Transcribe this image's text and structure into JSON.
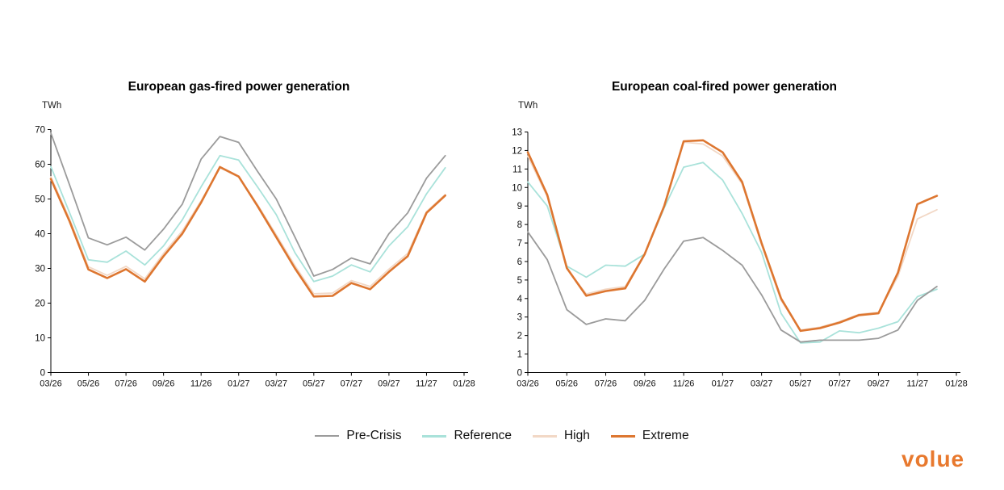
{
  "chart_data": [
    {
      "type": "line",
      "title": "European gas-fired power generation",
      "ylabel": "TWh",
      "x": [
        "03/26",
        "04/26",
        "05/26",
        "06/26",
        "07/26",
        "08/26",
        "09/26",
        "10/26",
        "11/26",
        "12/26",
        "01/27",
        "02/27",
        "03/27",
        "04/27",
        "05/27",
        "06/27",
        "07/27",
        "08/27",
        "09/27",
        "10/27",
        "11/27",
        "12/27"
      ],
      "x_tick_labels": [
        "03/26",
        "05/26",
        "07/26",
        "09/26",
        "11/26",
        "01/27",
        "03/27",
        "05/27",
        "07/27",
        "09/27",
        "11/27",
        "01/28"
      ],
      "ylim": [
        0,
        70
      ],
      "y_ticks": [
        0,
        10,
        20,
        30,
        40,
        50,
        60,
        70
      ],
      "grid": false,
      "legend_position": "bottom-shared",
      "series": [
        {
          "name": "Pre-Crisis",
          "color": "#9B9B9B",
          "values": [
            69,
            54,
            38.8,
            36.8,
            39,
            35.3,
            41.3,
            48.5,
            61.5,
            68,
            66.3,
            58,
            50,
            39,
            27.8,
            29.7,
            33,
            31.3,
            40,
            46,
            56,
            62.5
          ]
        },
        {
          "name": "Reference",
          "color": "#A9E2DA",
          "values": [
            59.3,
            46,
            32.5,
            31.8,
            35,
            31,
            36.5,
            44,
            53.5,
            62.5,
            61.2,
            53.5,
            45.5,
            34.5,
            26.2,
            27.8,
            31,
            29,
            36.5,
            42,
            51.5,
            59
          ]
        },
        {
          "name": "High",
          "color": "#F2D8C6",
          "values": [
            56.4,
            44.2,
            30.5,
            28,
            30.6,
            27,
            34.3,
            40.8,
            49.5,
            59,
            56.3,
            48.4,
            39.7,
            30.8,
            22.7,
            22.9,
            26.5,
            24.8,
            29.8,
            34.3,
            46.4,
            51.3
          ]
        },
        {
          "name": "Extreme",
          "color": "#DD7630",
          "values": [
            55.8,
            43.5,
            29.7,
            27.2,
            29.8,
            26.2,
            33.5,
            40,
            49,
            59.2,
            56.5,
            48,
            39,
            30,
            21.9,
            22.1,
            25.8,
            24,
            29,
            33.5,
            46,
            51
          ]
        }
      ]
    },
    {
      "type": "line",
      "title": "European coal-fired power generation",
      "ylabel": "TWh",
      "x": [
        "03/26",
        "04/26",
        "05/26",
        "06/26",
        "07/26",
        "08/26",
        "09/26",
        "10/26",
        "11/26",
        "12/26",
        "01/27",
        "02/27",
        "03/27",
        "04/27",
        "05/27",
        "06/27",
        "07/27",
        "08/27",
        "09/27",
        "10/27",
        "11/27",
        "12/27"
      ],
      "x_tick_labels": [
        "03/26",
        "05/26",
        "07/26",
        "09/26",
        "11/26",
        "01/27",
        "03/27",
        "05/27",
        "07/27",
        "09/27",
        "11/27",
        "01/28"
      ],
      "ylim": [
        0,
        13
      ],
      "y_ticks": [
        0,
        1,
        2,
        3,
        4,
        5,
        6,
        7,
        8,
        9,
        10,
        11,
        12,
        13
      ],
      "grid": false,
      "legend_position": "bottom-shared",
      "series": [
        {
          "name": "Pre-Crisis",
          "color": "#9B9B9B",
          "values": [
            7.6,
            6.1,
            3.4,
            2.6,
            2.9,
            2.8,
            3.9,
            5.6,
            7.1,
            7.3,
            6.6,
            5.8,
            4.2,
            2.3,
            1.65,
            1.75,
            1.75,
            1.75,
            1.85,
            2.3,
            3.9,
            4.65
          ]
        },
        {
          "name": "Reference",
          "color": "#A9E2DA",
          "values": [
            10.3,
            9,
            5.75,
            5.15,
            5.8,
            5.75,
            6.4,
            8.9,
            11.1,
            11.35,
            10.4,
            8.6,
            6.5,
            3.2,
            1.6,
            1.65,
            2.25,
            2.15,
            2.4,
            2.75,
            4.1,
            4.5
          ]
        },
        {
          "name": "High",
          "color": "#F2D8C6",
          "values": [
            11.7,
            9.5,
            5.6,
            4.25,
            4.5,
            4.65,
            6.4,
            9,
            12.45,
            12.35,
            11.7,
            10.2,
            6.9,
            3.9,
            2.3,
            2.45,
            2.75,
            3.15,
            3.25,
            5.2,
            8.3,
            8.8
          ]
        },
        {
          "name": "Extreme",
          "color": "#DD7630",
          "values": [
            11.9,
            9.6,
            5.65,
            4.15,
            4.4,
            4.55,
            6.4,
            9,
            12.5,
            12.55,
            11.9,
            10.3,
            7,
            4,
            2.25,
            2.4,
            2.7,
            3.1,
            3.2,
            5.4,
            9.1,
            9.55
          ]
        }
      ]
    }
  ],
  "legend": {
    "items": [
      {
        "label": "Pre-Crisis",
        "color": "#9B9B9B"
      },
      {
        "label": "Reference",
        "color": "#A9E2DA"
      },
      {
        "label": "High",
        "color": "#F2D8C6"
      },
      {
        "label": "Extreme",
        "color": "#DD7630"
      }
    ]
  },
  "logo": {
    "text": "volue",
    "color": "#E8792E"
  }
}
